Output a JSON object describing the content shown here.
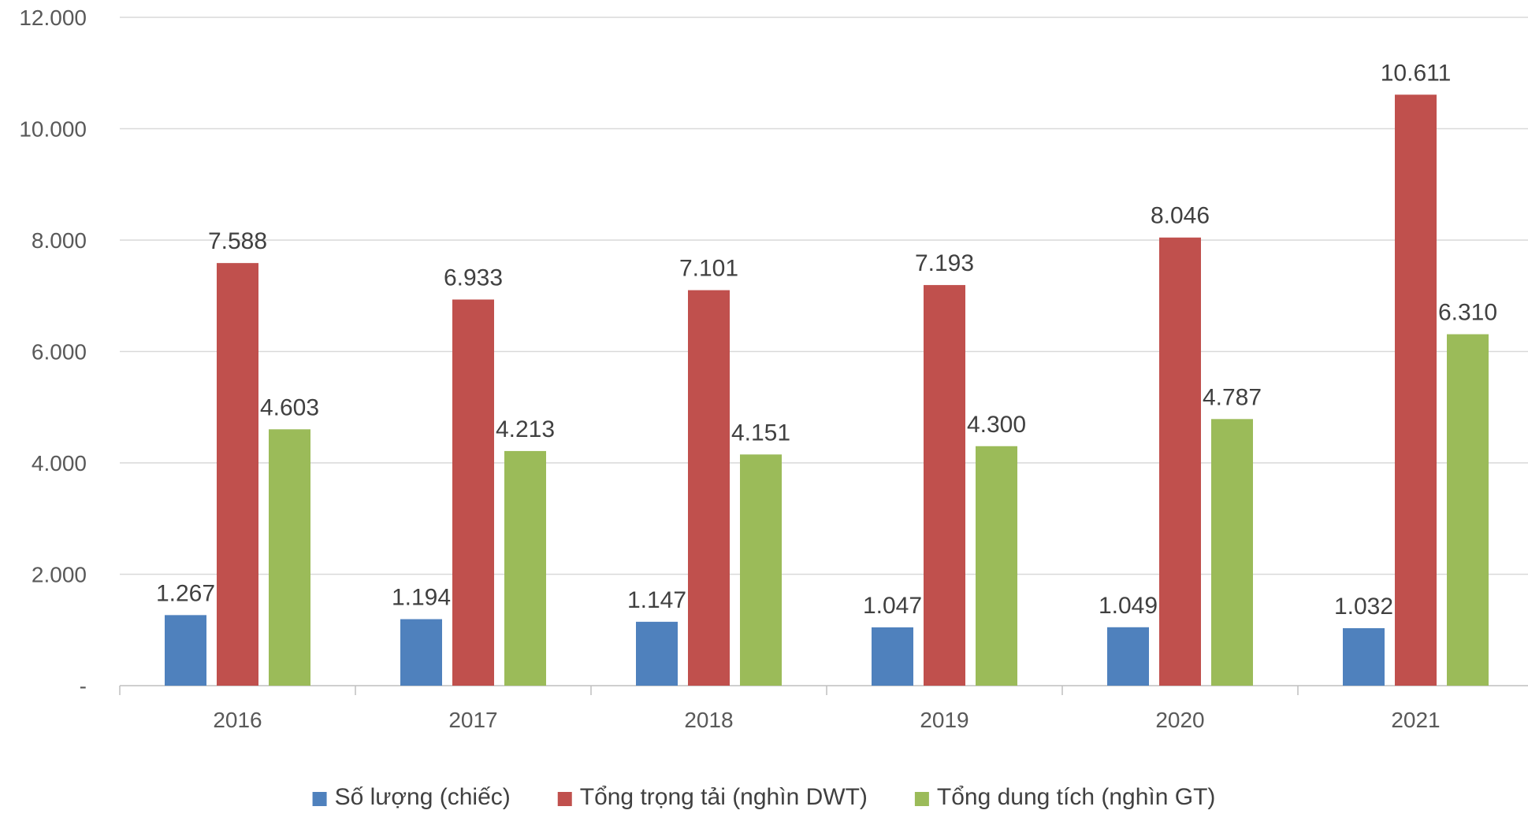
{
  "chart_data": {
    "type": "bar",
    "categories": [
      "2016",
      "2017",
      "2018",
      "2019",
      "2020",
      "2021"
    ],
    "series": [
      {
        "name": "Số lượng (chiếc)",
        "color": "#4F81BD",
        "values": [
          1267,
          1194,
          1147,
          1047,
          1049,
          1032
        ],
        "labels": [
          "1.267",
          "1.194",
          "1.147",
          "1.047",
          "1.049",
          "1.032"
        ]
      },
      {
        "name": "Tổng trọng tải (nghìn DWT)",
        "color": "#C0504D",
        "values": [
          7588,
          6933,
          7101,
          7193,
          8046,
          10611
        ],
        "labels": [
          "7.588",
          "6.933",
          "7.101",
          "7.193",
          "8.046",
          "10.611"
        ]
      },
      {
        "name": "Tổng dung tích  (nghìn GT)",
        "color": "#9BBB59",
        "values": [
          4603,
          4213,
          4151,
          4300,
          4787,
          6310
        ],
        "labels": [
          "4.603",
          "4.213",
          "4.151",
          "4.300",
          "4.787",
          "6.310"
        ]
      }
    ],
    "ylim": [
      0,
      12000
    ],
    "yticks": [
      {
        "value": 0,
        "label": "-"
      },
      {
        "value": 2000,
        "label": "2.000"
      },
      {
        "value": 4000,
        "label": "4.000"
      },
      {
        "value": 6000,
        "label": "6.000"
      },
      {
        "value": 8000,
        "label": "8.000"
      },
      {
        "value": 10000,
        "label": "10.000"
      },
      {
        "value": 12000,
        "label": "12.000"
      }
    ],
    "grid": true,
    "legend_position": "bottom"
  }
}
